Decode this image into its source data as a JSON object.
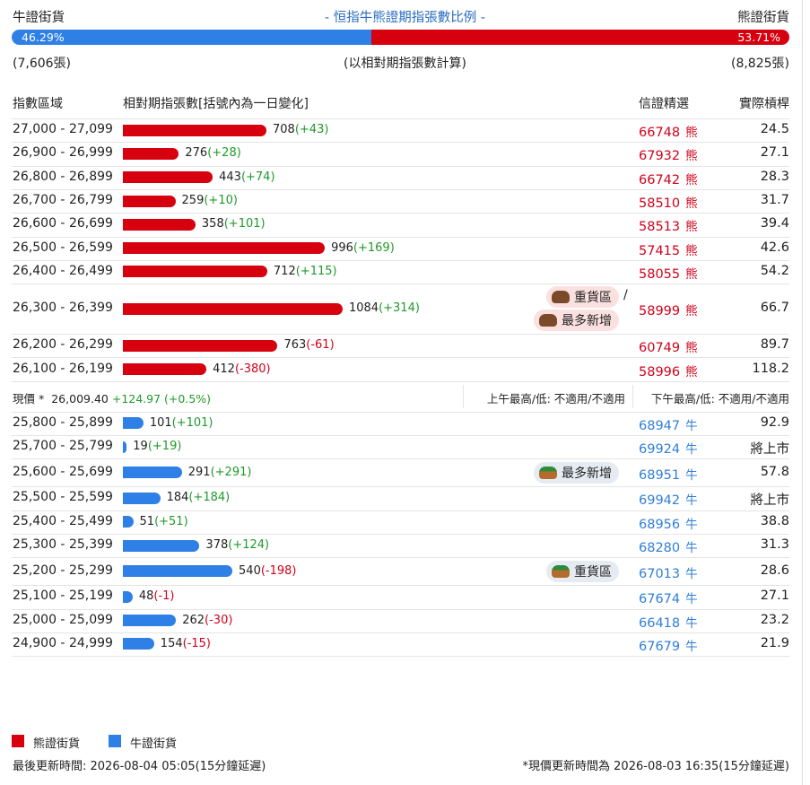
{
  "header": {
    "left_title": "牛證街貨",
    "title": "- 恒指牛熊證期指張數比例 -",
    "right_title": "熊證街貨"
  },
  "ratio": {
    "bull": {
      "value": 46.29,
      "label": "46.29%"
    },
    "bear": {
      "value": 53.71,
      "label": "53.71%"
    }
  },
  "totals": {
    "bull": "(7,606張)",
    "note": "(以相對期指張數計算)",
    "bear": "(8,825張)"
  },
  "columns": [
    "指數區域",
    "相對期指張數[括號內為一日變化]",
    "信證精選",
    "實際槓桿"
  ],
  "bear_rows": [
    {
      "range": "27,000 - 27,099",
      "count": 708,
      "change": "(+43)",
      "code": "66748",
      "kind": "熊",
      "leverage": "24.5"
    },
    {
      "range": "26,900 - 26,999",
      "count": 276,
      "change": "(+28)",
      "code": "67932",
      "kind": "熊",
      "leverage": "27.1"
    },
    {
      "range": "26,800 - 26,899",
      "count": 443,
      "change": "(+74)",
      "code": "66742",
      "kind": "熊",
      "leverage": "28.3"
    },
    {
      "range": "26,700 - 26,799",
      "count": 259,
      "change": "(+10)",
      "code": "58510",
      "kind": "熊",
      "leverage": "31.7"
    },
    {
      "range": "26,600 - 26,699",
      "count": 358,
      "change": "(+101)",
      "code": "58513",
      "kind": "熊",
      "leverage": "39.4"
    },
    {
      "range": "26,500 - 26,599",
      "count": 996,
      "change": "(+169)",
      "code": "57415",
      "kind": "熊",
      "leverage": "42.6"
    },
    {
      "range": "26,400 - 26,499",
      "count": 712,
      "change": "(+115)",
      "code": "58055",
      "kind": "熊",
      "leverage": "54.2"
    },
    {
      "range": "26,300 - 26,399",
      "count": 1084,
      "change": "(+314)",
      "code": "58999",
      "kind": "熊",
      "leverage": "66.7",
      "badges": [
        "重貨區",
        "最多新增"
      ],
      "badge_separator": "/"
    },
    {
      "range": "26,200 - 26,299",
      "count": 763,
      "change": "(-61)",
      "code": "60749",
      "kind": "熊",
      "leverage": "89.7"
    },
    {
      "range": "26,100 - 26,199",
      "count": 412,
      "change": "(-380)",
      "code": "58996",
      "kind": "熊",
      "leverage": "118.2"
    }
  ],
  "price_row": {
    "label": "現價 *",
    "price": "26,009.40",
    "change": "+124.97 (+0.5%)",
    "am": "上午最高/低: 不適用/不適用",
    "pm": "下午最高/低: 不適用/不適用"
  },
  "bull_rows": [
    {
      "range": "25,800 - 25,899",
      "count": 101,
      "change": "(+101)",
      "code": "68947",
      "kind": "牛",
      "leverage": "92.9"
    },
    {
      "range": "25,700 - 25,799",
      "count": 19,
      "change": "(+19)",
      "code": "69924",
      "kind": "牛",
      "leverage": "將上市"
    },
    {
      "range": "25,600 - 25,699",
      "count": 291,
      "change": "(+291)",
      "code": "68951",
      "kind": "牛",
      "leverage": "57.8",
      "badges": [
        "最多新增"
      ]
    },
    {
      "range": "25,500 - 25,599",
      "count": 184,
      "change": "(+184)",
      "code": "69942",
      "kind": "牛",
      "leverage": "將上市"
    },
    {
      "range": "25,400 - 25,499",
      "count": 51,
      "change": "(+51)",
      "code": "68956",
      "kind": "牛",
      "leverage": "38.8"
    },
    {
      "range": "25,300 - 25,399",
      "count": 378,
      "change": "(+124)",
      "code": "68280",
      "kind": "牛",
      "leverage": "31.3"
    },
    {
      "range": "25,200 - 25,299",
      "count": 540,
      "change": "(-198)",
      "code": "67013",
      "kind": "牛",
      "leverage": "28.6",
      "badges": [
        "重貨區"
      ]
    },
    {
      "range": "25,100 - 25,199",
      "count": 48,
      "change": "(-1)",
      "code": "67674",
      "kind": "牛",
      "leverage": "27.1"
    },
    {
      "range": "25,000 - 25,099",
      "count": 262,
      "change": "(-30)",
      "code": "66418",
      "kind": "牛",
      "leverage": "23.2"
    },
    {
      "range": "24,900 - 24,999",
      "count": 154,
      "change": "(-15)",
      "code": "67679",
      "kind": "牛",
      "leverage": "21.9"
    }
  ],
  "legend": [
    {
      "label": "熊證街貨",
      "color": "#d7000f"
    },
    {
      "label": "牛證街貨",
      "color": "#2f80e6"
    }
  ],
  "footer": {
    "updated": "最後更新時間: 2026-08-04 05:05(15分鐘延遲)",
    "price_updated": "*現價更新時間為 2026-08-03 16:35(15分鐘延遲)"
  }
}
